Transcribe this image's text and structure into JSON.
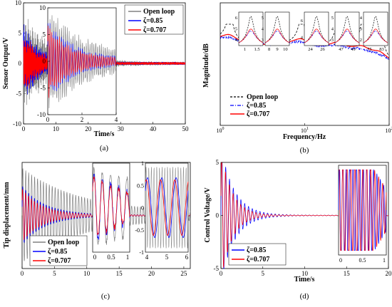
{
  "chart_data": [
    {
      "type": "line",
      "panel_label": "(a)",
      "xlabel": "Time/s",
      "ylabel": "Sensor Output/V",
      "xlim": [
        0,
        50
      ],
      "ylim": [
        -10,
        10
      ],
      "xticks": [
        0,
        10,
        20,
        30,
        40,
        50
      ],
      "yticks": [
        -10,
        -5,
        0,
        5,
        10
      ],
      "legend": {
        "placement": "top-right",
        "entries": [
          "Open loop",
          "ζ=0.85",
          "ζ=0.707"
        ]
      },
      "series": [
        {
          "name": "Open loop",
          "color": "#808080",
          "amplitude": 8.5,
          "decay_time": 9,
          "oscillation_freq": 6
        },
        {
          "name": "ζ=0.85",
          "color": "#0000ff",
          "amplitude": 6.5,
          "decay_time": 5.5,
          "oscillation_freq": 6
        },
        {
          "name": "ζ=0.707",
          "color": "#ff0000",
          "amplitude": 6,
          "decay_time": 4.8,
          "oscillation_freq": 6
        }
      ],
      "inset": {
        "xlim": [
          0,
          4
        ],
        "ylim": [
          -10,
          10
        ],
        "xticks": [
          0,
          2,
          4
        ],
        "yticks": [
          -10,
          -5,
          0,
          5,
          10
        ]
      }
    },
    {
      "type": "line",
      "panel_label": "(b)",
      "xlabel": "Frequency/Hz",
      "ylabel": "Magnitude/dB",
      "xscale": "log",
      "xlim": [
        1,
        100
      ],
      "xtick_labels": [
        "10^0",
        "10^1",
        "10^2"
      ],
      "legend": {
        "placement": "bottom-left",
        "entries": [
          "Open loop",
          "ζ=0.85",
          "ζ=0.707"
        ]
      },
      "series": [
        {
          "name": "Open loop",
          "color": "#000000",
          "dash": "dashed"
        },
        {
          "name": "ζ=0.85",
          "color": "#0000ff",
          "dash": "dashdot"
        },
        {
          "name": "ζ=0.707",
          "color": "#ff0000",
          "dash": "solid"
        }
      ],
      "insets": [
        {
          "xticks": [
            "1",
            "1.5"
          ],
          "yticks": [
            "4",
            "5",
            "6"
          ],
          "peak": 1.3
        },
        {
          "xticks": [
            "8",
            "9",
            "10"
          ],
          "yticks": [
            "3",
            "4",
            "5"
          ],
          "peak": 9.2
        },
        {
          "xticks": [
            "24",
            "26"
          ],
          "yticks": [
            "4",
            "6"
          ],
          "peak": 25.2
        },
        {
          "xticks": [
            "47",
            "49"
          ],
          "yticks": [
            "3",
            "4",
            "5"
          ],
          "peak": 48.1
        },
        {
          "xticks": [
            "75",
            "83"
          ],
          "yticks": [
            "2",
            "3",
            "4"
          ],
          "peak": 79
        }
      ]
    },
    {
      "type": "line",
      "panel_label": "(c)",
      "xlabel": "",
      "ylabel": "Tip displacement/mm",
      "xlim": [
        0,
        26
      ],
      "ylim": [
        -1,
        1
      ],
      "xticks": [
        0,
        5,
        10,
        15,
        20,
        25
      ],
      "yticks": [
        -1,
        -0.5,
        0,
        0.5,
        1
      ],
      "legend": {
        "placement": "bottom-left",
        "entries": [
          "Open loop",
          "ζ=0.85",
          "ζ=0.707"
        ]
      },
      "series": [
        {
          "name": "Open loop",
          "color": "#808080"
        },
        {
          "name": "ζ=0.85",
          "color": "#0000ff"
        },
        {
          "name": "ζ=0.707",
          "color": "#ff0000"
        }
      ],
      "insets": [
        {
          "xticks": [
            "0",
            "0.5",
            "1"
          ]
        },
        {
          "xticks": [
            "4",
            "5",
            "6"
          ],
          "yticks": [
            "-1",
            "-0.5",
            "0",
            "0.5",
            "1"
          ]
        }
      ]
    },
    {
      "type": "line",
      "panel_label": "(d)",
      "xlabel": "Time/s",
      "ylabel": "Control Voltage/V",
      "xlim": [
        0,
        20
      ],
      "ylim": [
        -5,
        5
      ],
      "xticks": [
        0,
        5,
        10,
        15,
        20
      ],
      "yticks": [
        -5,
        0,
        5
      ],
      "legend": {
        "placement": "bottom-left",
        "entries": [
          "ζ=0.85",
          "ζ=0.707"
        ]
      },
      "series": [
        {
          "name": "ζ=0.85",
          "color": "#0000ff"
        },
        {
          "name": "ζ=0.707",
          "color": "#ff0000"
        }
      ],
      "inset": {
        "xticks": [
          "0",
          "0.5",
          "1"
        ]
      }
    }
  ]
}
